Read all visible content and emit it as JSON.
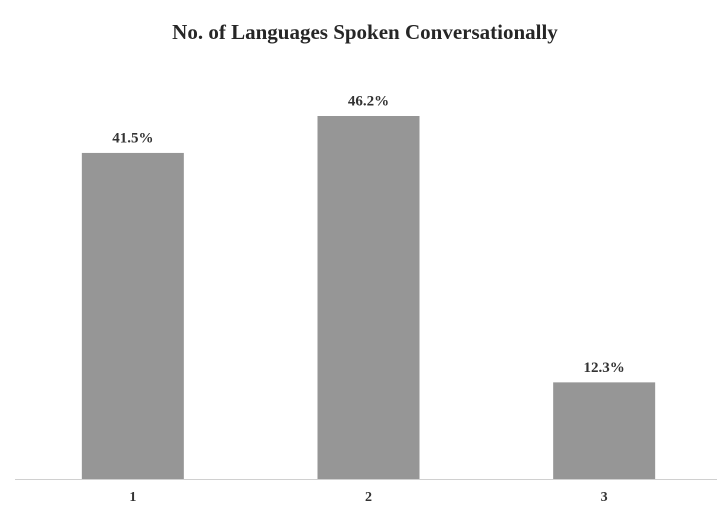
{
  "chart_data": {
    "type": "bar",
    "title": "No. of Languages Spoken Conversationally",
    "categories": [
      "1",
      "2",
      "3"
    ],
    "values": [
      41.5,
      46.2,
      12.3
    ],
    "value_labels": [
      "41.5%",
      "46.2%",
      "12.3%"
    ],
    "color": "#969696"
  }
}
